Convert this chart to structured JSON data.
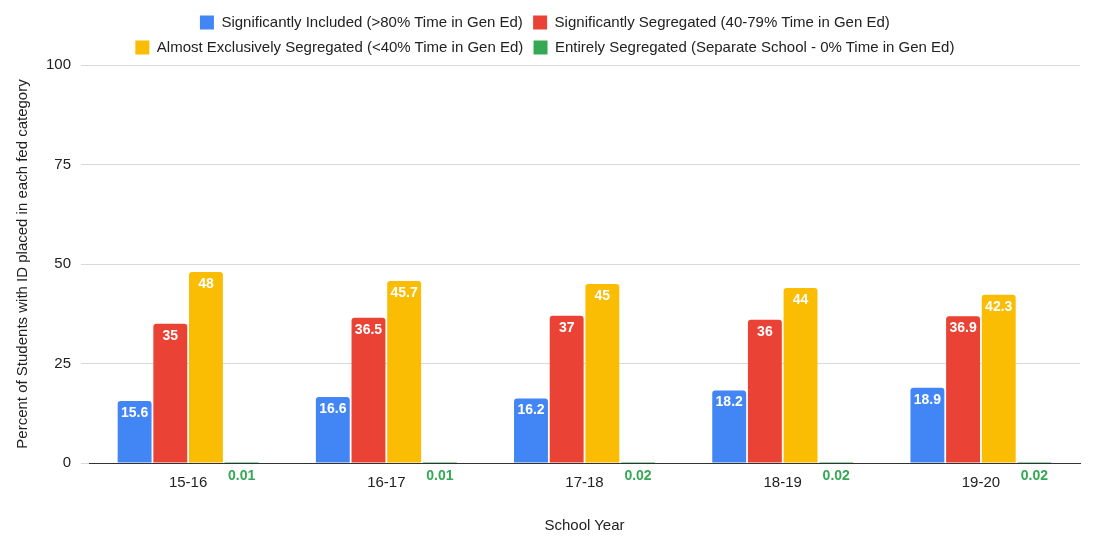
{
  "chart_data": {
    "type": "bar",
    "xlabel": "School Year",
    "ylabel": "Percent of Students with ID placed in each fed category",
    "categories": [
      "15-16",
      "16-17",
      "17-18",
      "18-19",
      "19-20"
    ],
    "series": [
      {
        "name": "Significantly Included (>80% Time in Gen Ed)",
        "color": "#4285f4",
        "values": [
          15.6,
          16.6,
          16.2,
          18.2,
          18.9
        ]
      },
      {
        "name": "Significantly Segregated (40-79% Time in Gen Ed)",
        "color": "#ea4335",
        "values": [
          35,
          36.5,
          37,
          36,
          36.9
        ]
      },
      {
        "name": "Almost Exclusively Segregated (<40% Time in Gen Ed)",
        "color": "#fbbc04",
        "values": [
          48,
          45.7,
          45,
          44,
          42.3
        ]
      },
      {
        "name": "Entirely Segregated (Separate School - 0% Time in Gen Ed)",
        "color": "#34a853",
        "values": [
          0.01,
          0.01,
          0.02,
          0.02,
          0.02
        ]
      }
    ],
    "ylim": [
      0,
      100
    ],
    "yticks": [
      0,
      25,
      50,
      75,
      100
    ],
    "grid": "y",
    "legend": "top",
    "data_labels": true
  }
}
